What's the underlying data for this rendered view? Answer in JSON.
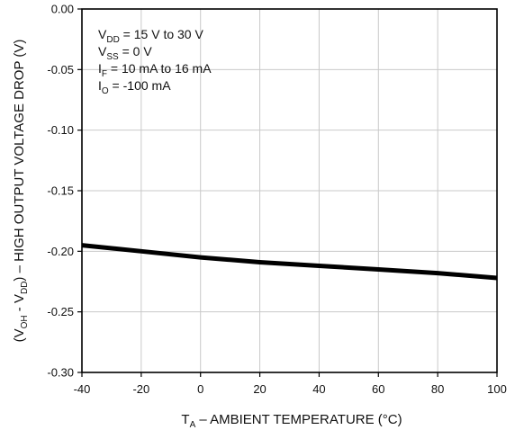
{
  "chart_data": {
    "type": "line",
    "title": "",
    "xlabel": {
      "main": "T",
      "sub": "A",
      "rest": " – AMBIENT TEMPERATURE (°C)"
    },
    "ylabel": {
      "p1": "(V",
      "p1sub": "OH",
      "p2": " - V",
      "p2sub": "DD",
      "p3": ") – HIGH OUTPUT VOLTAGE DROP (V)"
    },
    "xlim": [
      -40,
      100
    ],
    "ylim": [
      -0.3,
      0.0
    ],
    "x_ticks": [
      -40,
      -20,
      0,
      20,
      40,
      60,
      80,
      100
    ],
    "x_tick_labels": [
      "-40",
      "-20",
      "0",
      "20",
      "40",
      "60",
      "80",
      "100"
    ],
    "y_ticks": [
      0.0,
      -0.05,
      -0.1,
      -0.15,
      -0.2,
      -0.25,
      -0.3
    ],
    "y_tick_labels": [
      "0.00",
      "-0.05",
      "-0.10",
      "-0.15",
      "-0.20",
      "-0.25",
      "-0.30"
    ],
    "grid": true,
    "series": [
      {
        "x": [
          -40,
          -20,
          0,
          20,
          40,
          60,
          80,
          100
        ],
        "values": [
          -0.195,
          -0.2,
          -0.205,
          -0.209,
          -0.212,
          -0.215,
          -0.218,
          -0.222
        ],
        "color": "#000000"
      }
    ],
    "conditions": [
      {
        "main": "V",
        "sub": "DD",
        "rest": " = 15 V to 30 V"
      },
      {
        "main": "V",
        "sub": "SS",
        "rest": " = 0 V"
      },
      {
        "main": "I",
        "sub": "F",
        "rest": " = 10 mA to 16 mA"
      },
      {
        "main": "I",
        "sub": "O",
        "rest": " = -100 mA"
      }
    ]
  }
}
